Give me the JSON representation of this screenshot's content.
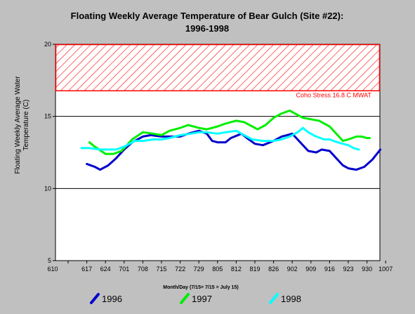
{
  "chart_data": {
    "type": "line",
    "title_line1": "Floating Weekly Average Temperature of Bear Gulch (Site #22):",
    "title_line2": "1996-1998",
    "ylabel_line1": "Floating Weekly Average Water",
    "ylabel_line2": "Temperature (C)",
    "xlabel": "Month/Day (7/15= 7/15 = July 15)",
    "ylim": [
      5,
      20
    ],
    "yticks": [
      "5",
      "10",
      "15",
      "20"
    ],
    "xticks": [
      "610",
      "617",
      "624",
      "701",
      "708",
      "715",
      "722",
      "729",
      "805",
      "812",
      "819",
      "826",
      "902",
      "909",
      "916",
      "923",
      "930",
      "1007"
    ],
    "grid_y": [
      10,
      15
    ],
    "threshold": {
      "value": 16.8,
      "top": 20,
      "label": "Coho Stress 16.8 C MWAT",
      "color": "#ff0000"
    },
    "series": [
      {
        "name": "1996",
        "color": "#0000cc",
        "points": [
          [
            617,
            11.7
          ],
          [
            620,
            11.5
          ],
          [
            622,
            11.3
          ],
          [
            625,
            11.6
          ],
          [
            628,
            12.1
          ],
          [
            701,
            12.7
          ],
          [
            704,
            13.2
          ],
          [
            708,
            13.6
          ],
          [
            711,
            13.7
          ],
          [
            715,
            13.6
          ],
          [
            718,
            13.6
          ],
          [
            722,
            13.6
          ],
          [
            725,
            13.8
          ],
          [
            729,
            14.0
          ],
          [
            801,
            13.8
          ],
          [
            803,
            13.3
          ],
          [
            805,
            13.2
          ],
          [
            808,
            13.2
          ],
          [
            810,
            13.5
          ],
          [
            814,
            13.8
          ],
          [
            816,
            13.5
          ],
          [
            819,
            13.1
          ],
          [
            822,
            13.0
          ],
          [
            826,
            13.3
          ],
          [
            829,
            13.6
          ],
          [
            831,
            13.7
          ],
          [
            902,
            13.8
          ],
          [
            905,
            13.2
          ],
          [
            908,
            12.6
          ],
          [
            911,
            12.5
          ],
          [
            913,
            12.7
          ],
          [
            916,
            12.6
          ],
          [
            918,
            12.2
          ],
          [
            921,
            11.6
          ],
          [
            923,
            11.4
          ],
          [
            926,
            11.3
          ],
          [
            929,
            11.5
          ],
          [
            1002,
            12.0
          ],
          [
            1005,
            12.7
          ]
        ]
      },
      {
        "name": "1997",
        "color": "#00ee00",
        "points": [
          [
            618,
            13.2
          ],
          [
            620,
            12.9
          ],
          [
            624,
            12.4
          ],
          [
            627,
            12.4
          ],
          [
            630,
            12.6
          ],
          [
            704,
            13.4
          ],
          [
            708,
            13.9
          ],
          [
            712,
            13.8
          ],
          [
            715,
            13.7
          ],
          [
            718,
            14.0
          ],
          [
            722,
            14.2
          ],
          [
            725,
            14.4
          ],
          [
            729,
            14.2
          ],
          [
            801,
            14.1
          ],
          [
            805,
            14.3
          ],
          [
            808,
            14.5
          ],
          [
            812,
            14.7
          ],
          [
            815,
            14.6
          ],
          [
            818,
            14.3
          ],
          [
            820,
            14.1
          ],
          [
            823,
            14.4
          ],
          [
            826,
            14.9
          ],
          [
            829,
            15.2
          ],
          [
            901,
            15.4
          ],
          [
            904,
            15.1
          ],
          [
            906,
            14.9
          ],
          [
            909,
            14.8
          ],
          [
            912,
            14.7
          ],
          [
            916,
            14.3
          ],
          [
            919,
            13.7
          ],
          [
            921,
            13.3
          ],
          [
            923,
            13.4
          ],
          [
            926,
            13.6
          ],
          [
            928,
            13.6
          ],
          [
            930,
            13.5
          ],
          [
            1001,
            13.5
          ]
        ]
      },
      {
        "name": "1998",
        "color": "#00ffff",
        "points": [
          [
            615,
            12.8
          ],
          [
            618,
            12.8
          ],
          [
            622,
            12.7
          ],
          [
            625,
            12.7
          ],
          [
            628,
            12.7
          ],
          [
            701,
            12.9
          ],
          [
            705,
            13.3
          ],
          [
            708,
            13.3
          ],
          [
            712,
            13.4
          ],
          [
            715,
            13.4
          ],
          [
            718,
            13.5
          ],
          [
            722,
            13.7
          ],
          [
            726,
            13.8
          ],
          [
            729,
            13.9
          ],
          [
            801,
            13.9
          ],
          [
            805,
            13.8
          ],
          [
            808,
            13.9
          ],
          [
            812,
            14.0
          ],
          [
            815,
            13.7
          ],
          [
            818,
            13.4
          ],
          [
            822,
            13.3
          ],
          [
            826,
            13.3
          ],
          [
            829,
            13.4
          ],
          [
            901,
            13.6
          ],
          [
            904,
            13.9
          ],
          [
            906,
            14.2
          ],
          [
            908,
            13.9
          ],
          [
            911,
            13.6
          ],
          [
            914,
            13.4
          ],
          [
            916,
            13.4
          ],
          [
            919,
            13.2
          ],
          [
            921,
            13.1
          ],
          [
            923,
            13.0
          ],
          [
            925,
            12.8
          ],
          [
            927,
            12.7
          ]
        ]
      }
    ]
  }
}
